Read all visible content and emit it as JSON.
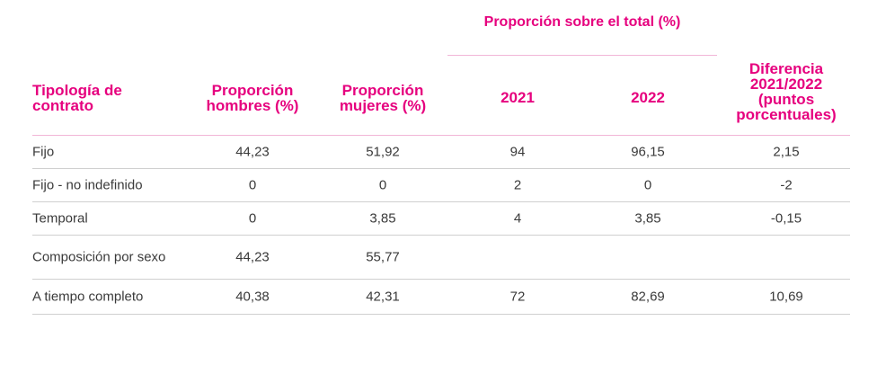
{
  "table": {
    "group_header": "Proporción sobre el total (%)",
    "headers": {
      "tipologia": "Tipología de contrato",
      "hombres": "Proporción hombres (%)",
      "mujeres": "Proporción mujeres (%)",
      "y2021": "2021",
      "y2022": "2022",
      "diferencia": "Diferencia 2021/2022 (puntos porcentuales)"
    },
    "rows": [
      {
        "label": "Fijo",
        "hombres": "44,23",
        "mujeres": "51,92",
        "y2021": "94",
        "y2022": "96,15",
        "diferencia": "2,15"
      },
      {
        "label": "Fijo - no indefinido",
        "hombres": "0",
        "mujeres": "0",
        "y2021": "2",
        "y2022": "0",
        "diferencia": "-2"
      },
      {
        "label": "Temporal",
        "hombres": "0",
        "mujeres": "3,85",
        "y2021": "4",
        "y2022": "3,85",
        "diferencia": "-0,15"
      },
      {
        "label": "Composición por sexo",
        "hombres": "44,23",
        "mujeres": "55,77",
        "y2021": "",
        "y2022": "",
        "diferencia": ""
      },
      {
        "label": "A tiempo completo",
        "hombres": "40,38",
        "mujeres": "42,31",
        "y2021": "72",
        "y2022": "82,69",
        "diferencia": "10,69"
      }
    ]
  },
  "colors": {
    "accent": "#e6007e",
    "rule_accent": "#f2b6d7",
    "rule_gray": "#cfcfcf",
    "text": "#3a3a3a"
  }
}
